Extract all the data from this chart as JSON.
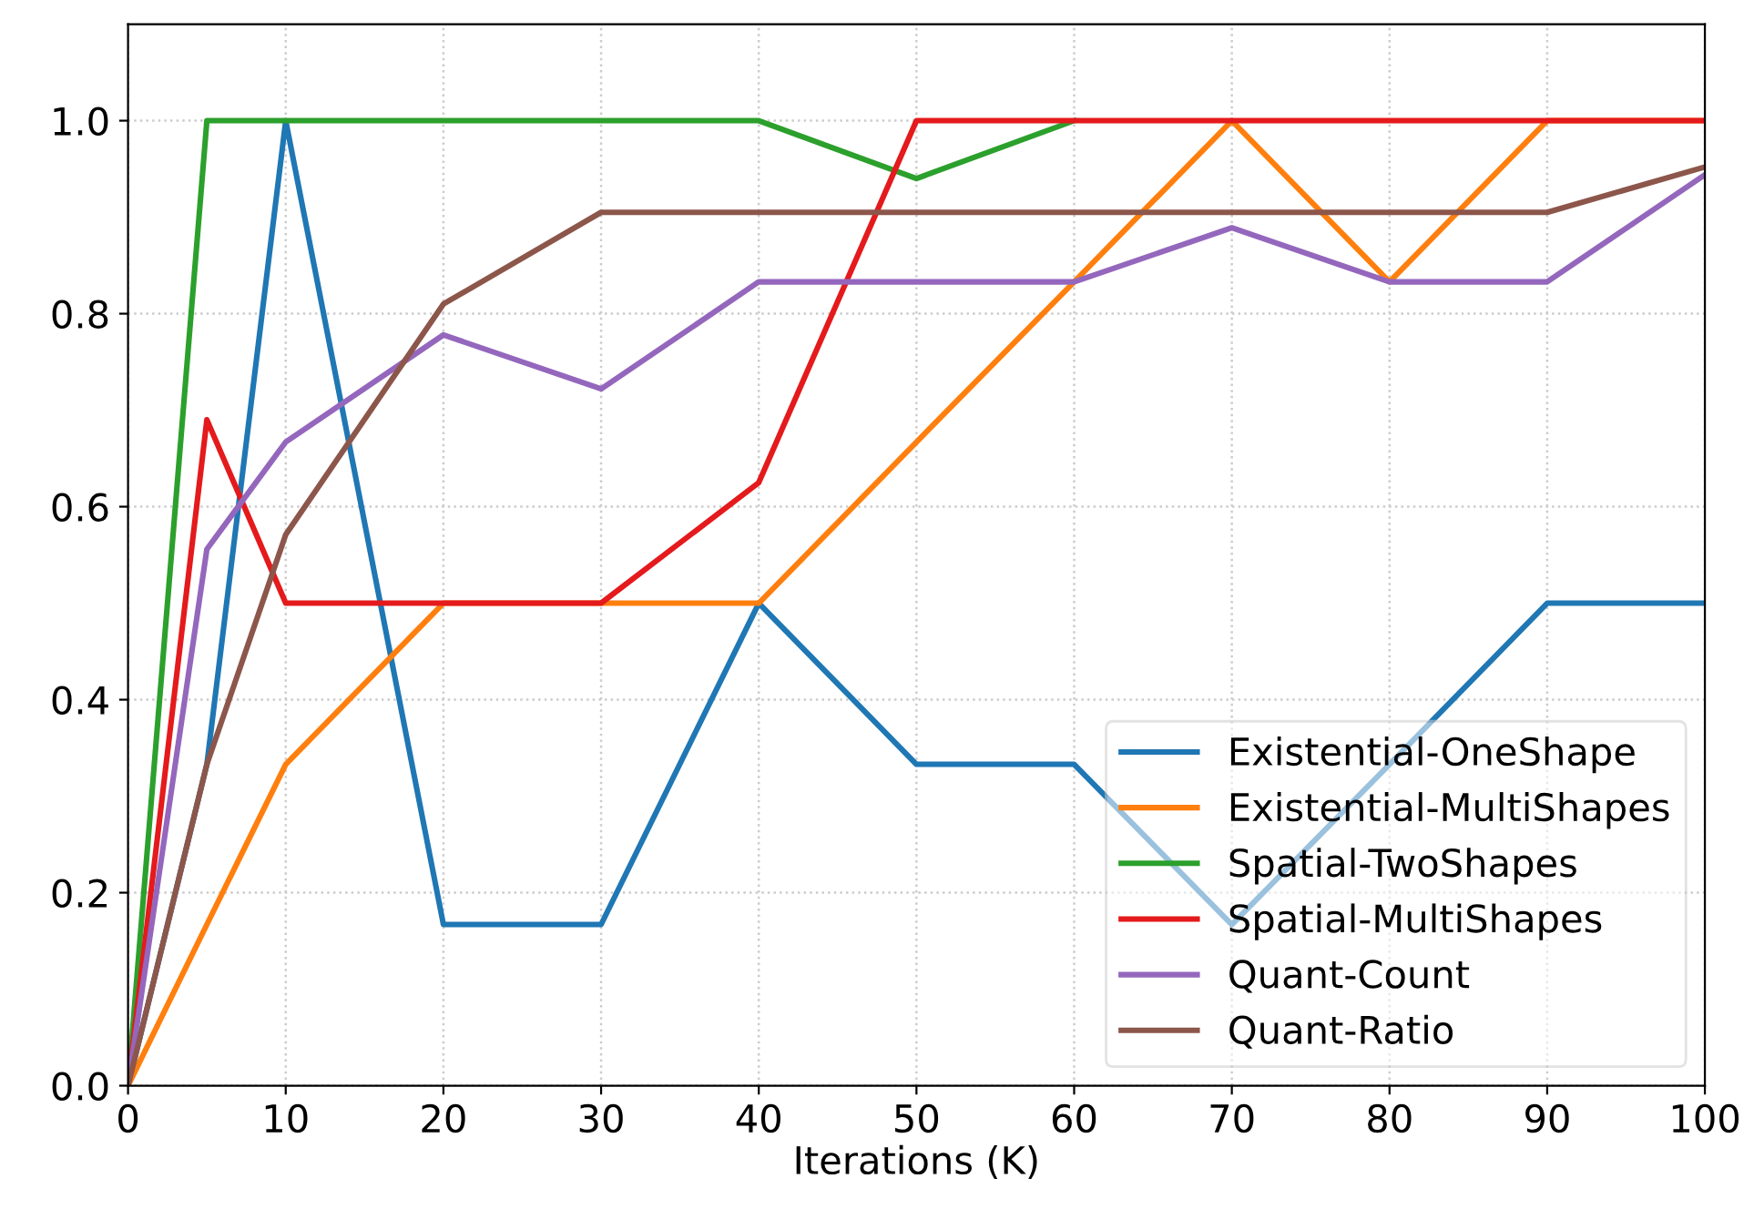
{
  "chart_data": {
    "type": "line",
    "xlabel": "Iterations (K)",
    "x": [
      0,
      5,
      10,
      20,
      30,
      40,
      50,
      60,
      70,
      80,
      90,
      100
    ],
    "xlim": [
      0,
      100
    ],
    "xticks": [
      0,
      10,
      20,
      30,
      40,
      50,
      60,
      70,
      80,
      90,
      100
    ],
    "ylim": [
      0,
      1.1
    ],
    "yticks": [
      {
        "value": 0,
        "label": "0.0"
      },
      0.2,
      0.4,
      0.6,
      0.8,
      {
        "value": 1,
        "label": "1.0"
      }
    ],
    "grid": true,
    "legend": "bottom right",
    "marker": "none",
    "line_style": "solid",
    "series": [
      {
        "name": "Existential-OneShape",
        "color": "#1f77b4",
        "values": [
          0,
          0.333,
          1.0,
          0.167,
          0.167,
          0.5,
          0.333,
          0.333,
          0.167,
          0.333,
          0.5,
          0.5
        ]
      },
      {
        "name": "Existential-MultiShapes",
        "color": "#ff7f0e",
        "values": [
          0,
          0.167,
          0.333,
          0.5,
          0.5,
          0.5,
          0.667,
          0.833,
          1.0,
          0.833,
          1.0,
          1.0
        ]
      },
      {
        "name": "Spatial-TwoShapes",
        "color": "#2ca02c",
        "values": [
          0,
          1.0,
          1.0,
          1.0,
          1.0,
          1.0,
          0.94,
          1.0,
          null,
          null,
          null,
          null
        ]
      },
      {
        "name": "Spatial-MultiShapes",
        "color": "#e41a1c",
        "values": [
          0,
          0.69,
          0.5,
          0.5,
          0.5,
          0.625,
          1.0,
          1.0,
          1.0,
          1.0,
          1.0,
          1.0
        ]
      },
      {
        "name": "Quant-Count",
        "color": "#9467bd",
        "values": [
          0,
          0.556,
          0.667,
          0.778,
          0.722,
          0.833,
          0.833,
          0.833,
          0.889,
          0.833,
          0.833,
          0.944
        ]
      },
      {
        "name": "Quant-Ratio",
        "color": "#8c564b",
        "values": [
          0,
          0.333,
          0.571,
          0.81,
          0.905,
          0.905,
          0.905,
          0.905,
          0.905,
          0.905,
          0.905,
          0.952
        ]
      }
    ]
  }
}
